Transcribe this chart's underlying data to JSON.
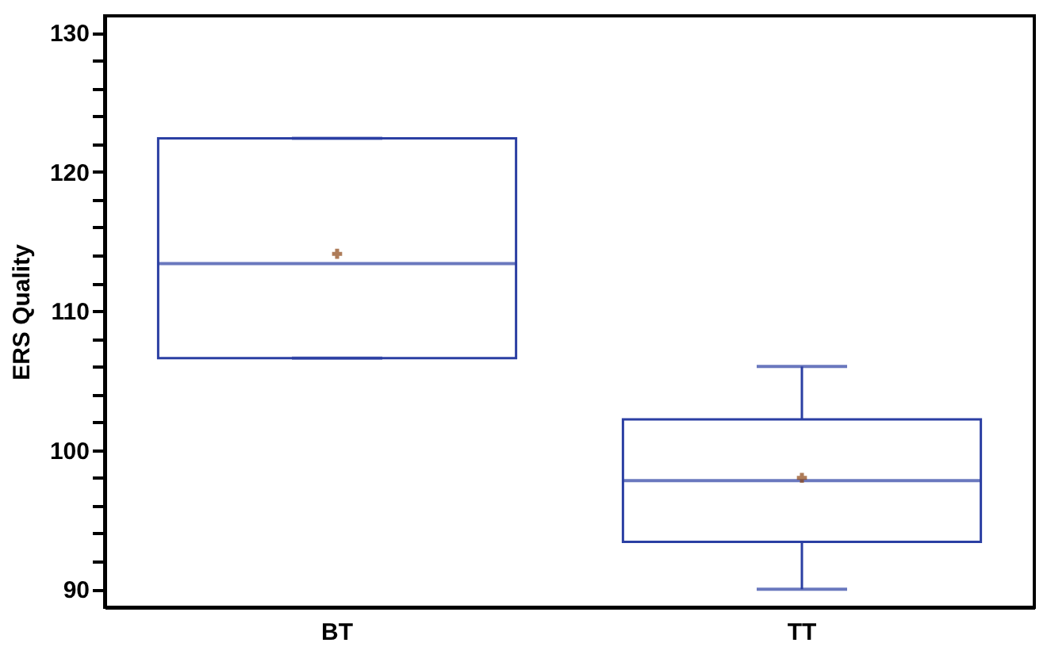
{
  "chart_data": {
    "type": "box",
    "ylabel": "ERS Quality",
    "categories": [
      "BT",
      "TT"
    ],
    "ylim": [
      88.7,
      131.2
    ],
    "yticks": [
      90,
      {
        "value": 92,
        "label": null
      },
      {
        "value": 94,
        "label": null
      },
      {
        "value": 96,
        "label": null
      },
      {
        "value": 98,
        "label": null
      },
      100,
      {
        "value": 102,
        "label": null
      },
      {
        "value": 104,
        "label": null
      },
      {
        "value": 106,
        "label": null
      },
      {
        "value": 108,
        "label": null
      },
      110,
      {
        "value": 112,
        "label": null
      },
      {
        "value": 114,
        "label": null
      },
      {
        "value": 116,
        "label": null
      },
      {
        "value": 118,
        "label": null
      },
      120,
      {
        "value": 122,
        "label": null
      },
      {
        "value": 124,
        "label": null
      },
      {
        "value": 126,
        "label": null
      },
      {
        "value": 128,
        "label": null
      },
      130
    ],
    "marker": "cross",
    "series": [
      {
        "color": "#2b3fa3",
        "boxes": [
          {
            "low": 106.6,
            "q1": 106.6,
            "median": 113.4,
            "q3": 122.4,
            "high": 122.4,
            "mean": 114.1
          },
          {
            "low": 90.0,
            "q1": 93.4,
            "median": 97.8,
            "q3": 102.2,
            "high": 106.0,
            "mean": 98.0
          }
        ]
      }
    ]
  }
}
